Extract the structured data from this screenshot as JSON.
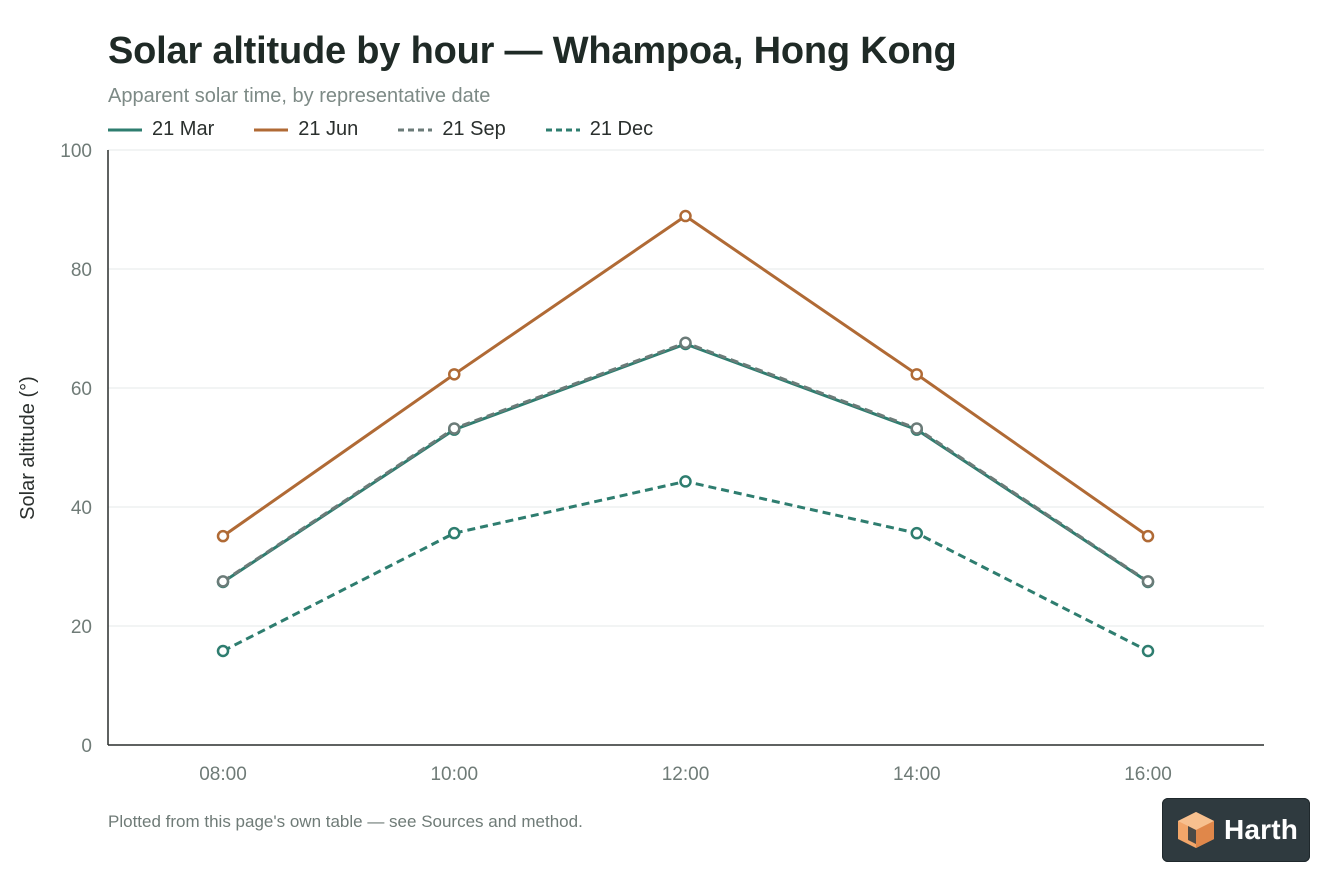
{
  "chart_data": {
    "type": "line",
    "title": "Solar altitude by hour — Whampoa, Hong Kong",
    "subtitle": "Apparent solar time, by representative date",
    "xlabel": "",
    "ylabel": "Solar altitude (°)",
    "categories": [
      "08:00",
      "10:00",
      "12:00",
      "14:00",
      "16:00"
    ],
    "ylim": [
      0,
      100
    ],
    "yticks": [
      0,
      20,
      40,
      60,
      80,
      100
    ],
    "grid": true,
    "legend_position": "top-left",
    "series": [
      {
        "name": "21 Mar",
        "values": [
          27.4,
          53.0,
          67.4,
          53.0,
          27.4
        ],
        "color": "#2e7d6f",
        "dashed": false
      },
      {
        "name": "21 Jun",
        "values": [
          35.1,
          62.3,
          88.9,
          62.3,
          35.1
        ],
        "color": "#b06a35",
        "dashed": false
      },
      {
        "name": "21 Sep",
        "values": [
          27.5,
          53.2,
          67.6,
          53.2,
          27.5
        ],
        "color": "#6b7b78",
        "dashed": true
      },
      {
        "name": "21 Dec",
        "values": [
          15.8,
          35.6,
          44.3,
          35.6,
          15.8
        ],
        "color": "#2e7d6f",
        "dashed": true
      }
    ]
  },
  "footnote": "Plotted from this page's own table — see Sources and method.",
  "badge": {
    "label": "Harth",
    "icon": "cube-icon"
  }
}
